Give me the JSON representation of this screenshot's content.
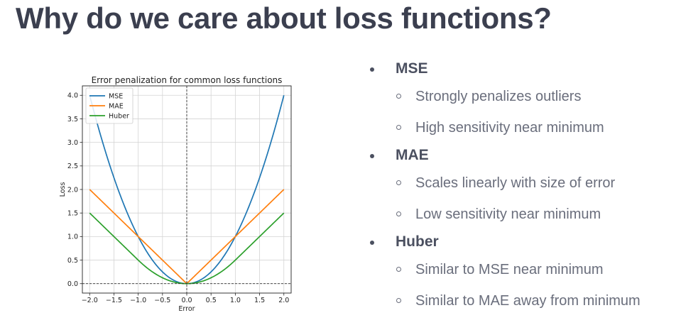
{
  "slide": {
    "title": "Why do we care about loss functions?"
  },
  "bullets": [
    {
      "label": "MSE",
      "items": [
        "Strongly penalizes outliers",
        "High sensitivity near minimum"
      ]
    },
    {
      "label": "MAE",
      "items": [
        "Scales linearly with size of error",
        "Low sensitivity near minimum"
      ]
    },
    {
      "label": "Huber",
      "items": [
        "Similar to MSE near minimum",
        "Similar to MAE away from minimum"
      ]
    }
  ],
  "chart_data": {
    "type": "line",
    "title": "Error penalization for common loss functions",
    "xlabel": "Error",
    "ylabel": "Loss",
    "xlim": [
      -2.15,
      2.15
    ],
    "ylim": [
      -0.2,
      4.2
    ],
    "xticks": [
      -2.0,
      -1.5,
      -1.0,
      -0.5,
      0.0,
      0.5,
      1.0,
      1.5,
      2.0
    ],
    "xtick_labels": [
      "−2.0",
      "−1.5",
      "−1.0",
      "−0.5",
      "0.0",
      "0.5",
      "1.0",
      "1.5",
      "2.0"
    ],
    "yticks": [
      0.0,
      0.5,
      1.0,
      1.5,
      2.0,
      2.5,
      3.0,
      3.5,
      4.0
    ],
    "ytick_labels": [
      "0.0",
      "0.5",
      "1.0",
      "1.5",
      "2.0",
      "2.5",
      "3.0",
      "3.5",
      "4.0"
    ],
    "grid": true,
    "legend_position": "top-left",
    "reference_lines": {
      "vertical_x": 0.0,
      "horizontal_y": 0.0,
      "style": "dashed"
    },
    "x": [
      -2.0,
      -1.75,
      -1.5,
      -1.25,
      -1.0,
      -0.75,
      -0.5,
      -0.25,
      0.0,
      0.25,
      0.5,
      0.75,
      1.0,
      1.25,
      1.5,
      1.75,
      2.0
    ],
    "series": [
      {
        "name": "MSE",
        "color": "#1f77b4",
        "values": [
          4.0,
          3.0625,
          2.25,
          1.5625,
          1.0,
          0.5625,
          0.25,
          0.0625,
          0.0,
          0.0625,
          0.25,
          0.5625,
          1.0,
          1.5625,
          2.25,
          3.0625,
          4.0
        ]
      },
      {
        "name": "MAE",
        "color": "#ff7f0e",
        "values": [
          2.0,
          1.75,
          1.5,
          1.25,
          1.0,
          0.75,
          0.5,
          0.25,
          0.0,
          0.25,
          0.5,
          0.75,
          1.0,
          1.25,
          1.5,
          1.75,
          2.0
        ]
      },
      {
        "name": "Huber",
        "color": "#2ca02c",
        "values": [
          1.5,
          1.25,
          1.0,
          0.78125,
          0.5,
          0.28125,
          0.125,
          0.03125,
          0.0,
          0.03125,
          0.125,
          0.28125,
          0.5,
          0.78125,
          1.0,
          1.25,
          1.5
        ]
      }
    ]
  }
}
